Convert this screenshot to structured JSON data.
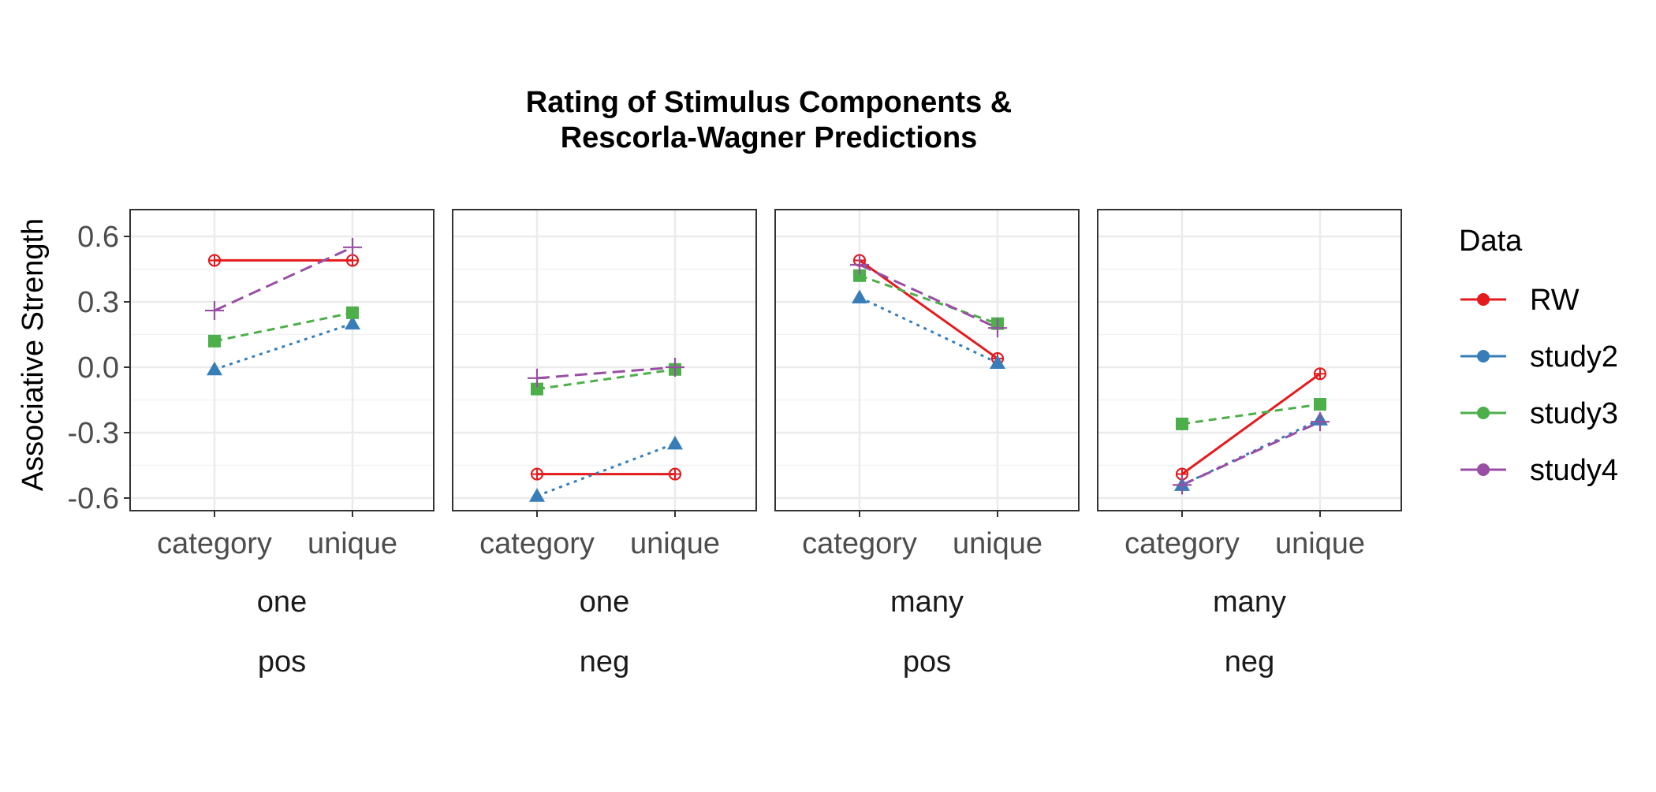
{
  "chart_data": {
    "type": "line",
    "title_line1": "Rating of Stimulus Components &",
    "title_line2": "Rescorla-Wagner Predictions",
    "xlabel": "",
    "ylabel": "Associative Strength",
    "ylim": [
      -0.65,
      0.65
    ],
    "yticks": [
      -0.6,
      -0.3,
      0.0,
      0.3,
      0.6
    ],
    "ytick_labels": [
      "-0.6",
      "-0.3",
      "0.0",
      "0.3",
      "0.6"
    ],
    "categories": [
      "category",
      "unique"
    ],
    "grid": true,
    "legend_title": "Data",
    "legend_position": "right",
    "panels": [
      {
        "strip1": "one",
        "strip2": "pos",
        "series": [
          {
            "name": "RW",
            "values": [
              0.49,
              0.49
            ]
          },
          {
            "name": "study2",
            "values": [
              -0.01,
              0.2
            ]
          },
          {
            "name": "study3",
            "values": [
              0.12,
              0.25
            ]
          },
          {
            "name": "study4",
            "values": [
              0.26,
              0.55
            ]
          }
        ]
      },
      {
        "strip1": "one",
        "strip2": "neg",
        "series": [
          {
            "name": "RW",
            "values": [
              -0.49,
              -0.49
            ]
          },
          {
            "name": "study2",
            "values": [
              -0.59,
              -0.35
            ]
          },
          {
            "name": "study3",
            "values": [
              -0.1,
              -0.01
            ]
          },
          {
            "name": "study4",
            "values": [
              -0.05,
              0.0
            ]
          }
        ]
      },
      {
        "strip1": "many",
        "strip2": "pos",
        "series": [
          {
            "name": "RW",
            "values": [
              0.49,
              0.04
            ]
          },
          {
            "name": "study2",
            "values": [
              0.32,
              0.02
            ]
          },
          {
            "name": "study3",
            "values": [
              0.42,
              0.2
            ]
          },
          {
            "name": "study4",
            "values": [
              0.47,
              0.18
            ]
          }
        ]
      },
      {
        "strip1": "many",
        "strip2": "neg",
        "series": [
          {
            "name": "RW",
            "values": [
              -0.49,
              -0.03
            ]
          },
          {
            "name": "study2",
            "values": [
              -0.54,
              -0.24
            ]
          },
          {
            "name": "study3",
            "values": [
              -0.26,
              -0.17
            ]
          },
          {
            "name": "study4",
            "values": [
              -0.54,
              -0.25
            ]
          }
        ]
      }
    ],
    "series_styles": [
      {
        "name": "RW",
        "color": "#E41A1C",
        "linetype": "solid",
        "shape": "circle-open-cross"
      },
      {
        "name": "study2",
        "color": "#377EB8",
        "linetype": "dotted",
        "shape": "triangle"
      },
      {
        "name": "study3",
        "color": "#4DAF4A",
        "linetype": "dashed",
        "shape": "square"
      },
      {
        "name": "study4",
        "color": "#984EA3",
        "linetype": "longdash",
        "shape": "plus"
      }
    ]
  }
}
